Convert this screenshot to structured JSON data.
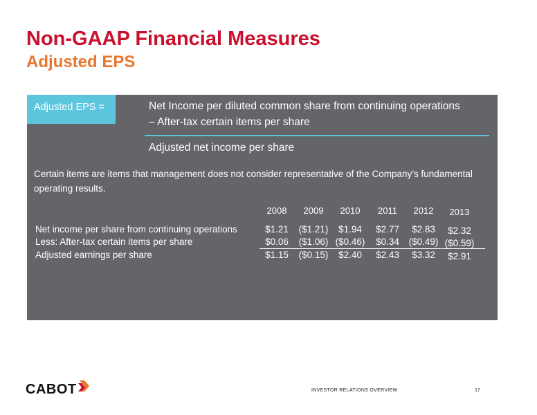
{
  "slide": {
    "title": "Non-GAAP Financial Measures",
    "subtitle": "Adjusted EPS"
  },
  "definition": {
    "label": "Adjusted EPS =",
    "line1": "Net Income per diluted common share from continuing operations",
    "line2": "– After-tax certain items per share",
    "result": "Adjusted net income per share"
  },
  "note": "Certain items are items that management does not consider representative of the Company’s fundamental operating results.",
  "table": {
    "years": [
      "2008",
      "2009",
      "2010",
      "2011",
      "2012",
      "2013"
    ],
    "rows": [
      {
        "label": "Net income per share from continuing operations",
        "values": [
          "$1.21",
          "($1.21)",
          "$1.94",
          "$2.77",
          "$2.83",
          "$2.32"
        ]
      },
      {
        "label": "Less: After-tax certain items per share",
        "values": [
          "$0.06",
          "($1.06)",
          "($0.46)",
          "$0.34",
          "($0.49)",
          "($0.59)"
        ]
      },
      {
        "label": "Adjusted earnings per share",
        "values": [
          "$1.15",
          "($0.15)",
          "$2.40",
          "$2.43",
          "$3.32",
          "$2.91"
        ]
      }
    ]
  },
  "footer": {
    "logo": "CABOT",
    "label": "INVESTOR RELATIONS OVERVIEW",
    "page": "17"
  },
  "colors": {
    "title": "#c8102e",
    "subtitle": "#e8772e",
    "panel": "#636569",
    "accent": "#5bc6de"
  }
}
